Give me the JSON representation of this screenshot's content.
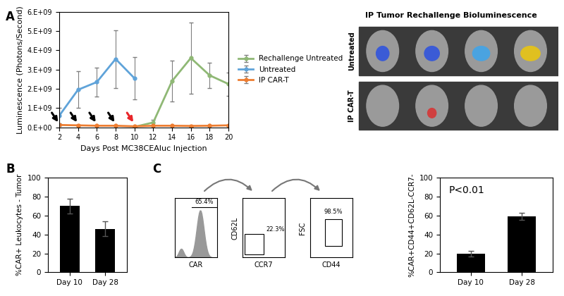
{
  "chart_data": [
    {
      "type": "line",
      "x_label": "Days Post MC38CEAluc Injection",
      "y_label": "Luminescence (Photons/Second)",
      "x": [
        2,
        4,
        6,
        8,
        10,
        12,
        14,
        16,
        18,
        20
      ],
      "xlim": [
        2,
        20
      ],
      "xticks": [
        2,
        4,
        6,
        8,
        10,
        12,
        14,
        16,
        18,
        20
      ],
      "ylim": [
        0,
        6000000000.0
      ],
      "yticks": [
        {
          "value": 0,
          "label": "0.E+00"
        },
        {
          "value": 1000000000.0,
          "label": "1.E+09"
        },
        {
          "value": 2000000000.0,
          "label": "2.E+09"
        },
        {
          "value": 3000000000.0,
          "label": "3.E+09"
        },
        {
          "value": 4000000000.0,
          "label": "4.E+09"
        },
        {
          "value": 5000000000.0,
          "label": "5.E+09"
        },
        {
          "value": 6000000000.0,
          "label": "6.E+09"
        }
      ],
      "legend": "center left",
      "series": [
        {
          "name": "Rechallenge Untreated",
          "color": "#8fb875",
          "marker": "o",
          "values": [
            null,
            null,
            null,
            null,
            20000000.0,
            250000000.0,
            2400000000.0,
            3600000000.0,
            2700000000.0,
            2250000000.0
          ],
          "errors": [
            null,
            null,
            null,
            null,
            null,
            150000000.0,
            1050000000.0,
            1850000000.0,
            650000000.0,
            600000000.0
          ]
        },
        {
          "name": "Untreated",
          "color": "#5fa3d9",
          "marker": "o",
          "values": [
            600000000.0,
            1950000000.0,
            2350000000.0,
            3550000000.0,
            2550000000.0,
            null,
            null,
            null,
            null,
            null
          ],
          "errors": [
            400000000.0,
            950000000.0,
            750000000.0,
            1500000000.0,
            1100000000.0,
            null,
            null,
            null,
            null,
            null
          ]
        },
        {
          "name": "IP CAR-T",
          "color": "#ed7d31",
          "marker": "o",
          "values": [
            120000000.0,
            100000000.0,
            80000000.0,
            80000000.0,
            50000000.0,
            80000000.0,
            80000000.0,
            70000000.0,
            80000000.0,
            100000000.0
          ],
          "errors": [
            50000000.0,
            40000000.0,
            30000000.0,
            30000000.0,
            20000000.0,
            30000000.0,
            30000000.0,
            30000000.0,
            30000000.0,
            40000000.0
          ]
        }
      ],
      "arrows": {
        "x": [
          2,
          4,
          6,
          8,
          10
        ],
        "colors": [
          "#000000",
          "#000000",
          "#000000",
          "#000000",
          "#e8262a"
        ]
      }
    },
    {
      "type": "bar",
      "y_label": "%CAR+ Leukocytes - Tumor",
      "categories": [
        "Day 10",
        "Day 28"
      ],
      "values": [
        70,
        46
      ],
      "errors": [
        8,
        8
      ],
      "color": "#000000",
      "ylim": [
        0,
        100
      ],
      "yticks": [
        0,
        20,
        40,
        60,
        80,
        100
      ]
    },
    {
      "type": "bar",
      "y_label": "%CAR+CD44+CD62L-CCR7-",
      "categories": [
        "Day 10",
        "Day 28"
      ],
      "values": [
        19.5,
        59
      ],
      "errors": [
        3,
        4
      ],
      "color": "#000000",
      "ylim": [
        0,
        100
      ],
      "yticks": [
        0,
        20,
        40,
        60,
        80,
        100
      ],
      "annotations": [
        "P<0.01"
      ]
    }
  ],
  "panel_labels": [
    "A",
    "B",
    "C"
  ],
  "image_panel": {
    "title": "IP Tumor Rechallenge Bioluminescence",
    "rows": [
      "Untreated",
      "IP CAR-T"
    ]
  },
  "gating": {
    "plots": [
      {
        "x_label": "CAR",
        "gate_label": "65.4%"
      },
      {
        "x_label": "CCR7",
        "y_label": "CD62L",
        "gate_label": "22.3%"
      },
      {
        "x_label": "CD44",
        "y_label": "FSC",
        "gate_label": "98.5%"
      }
    ]
  }
}
